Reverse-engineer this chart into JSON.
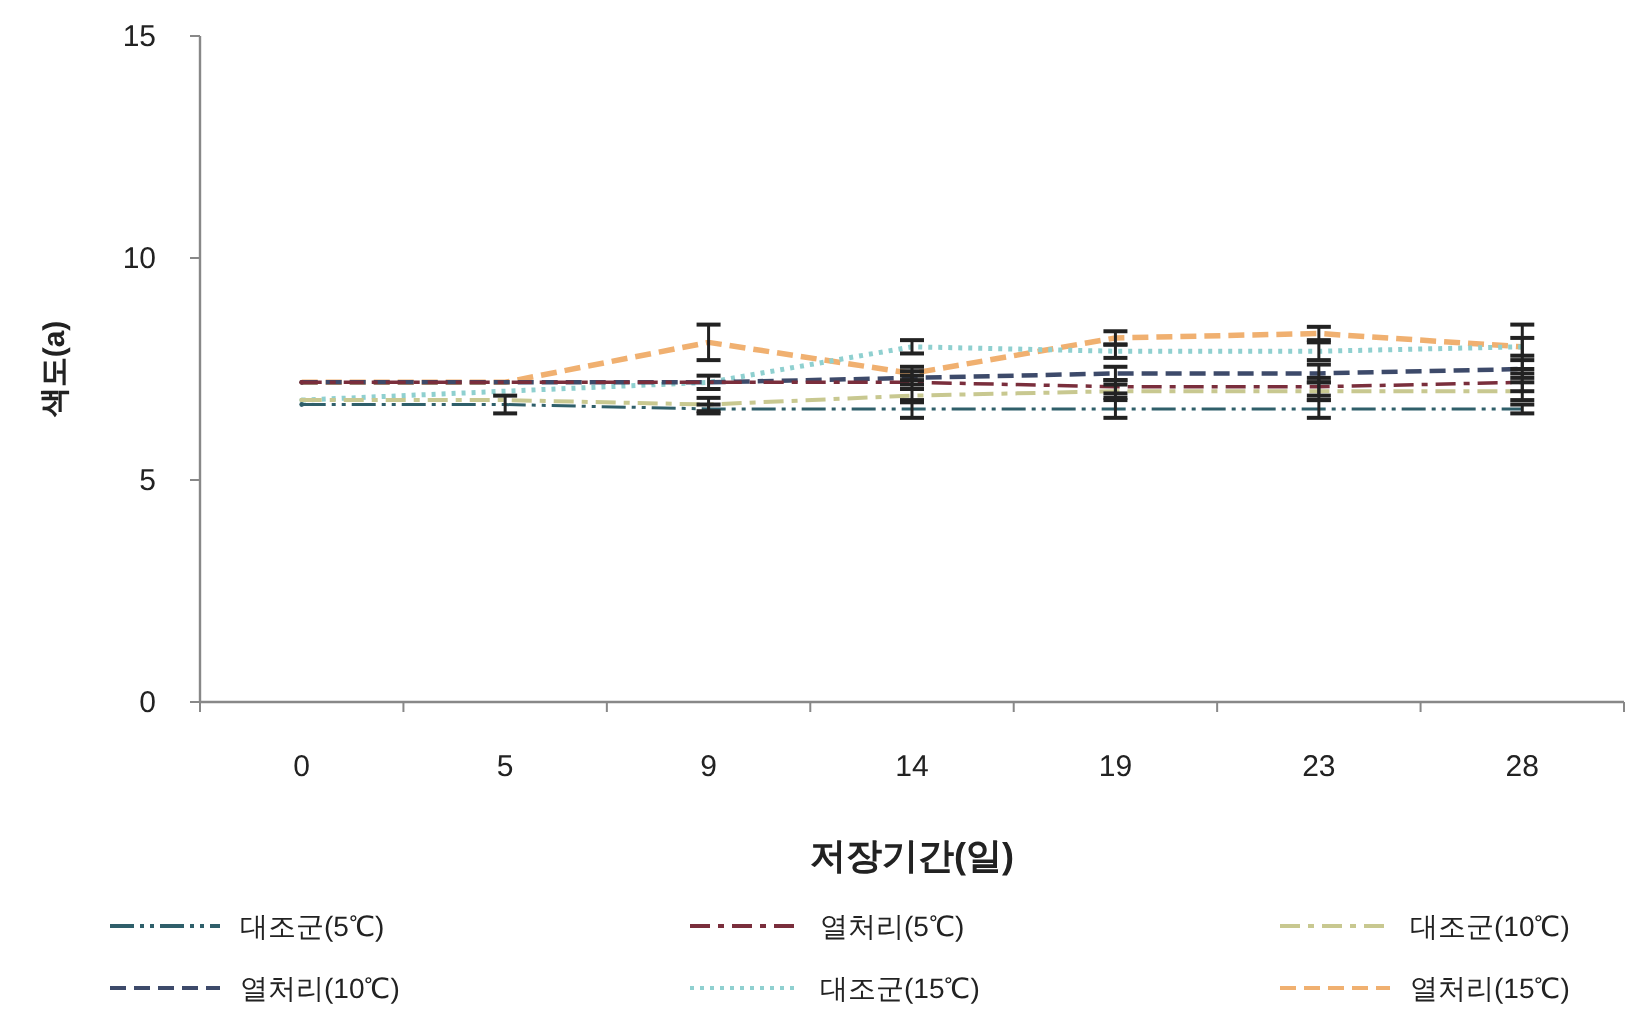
{
  "chart_data": {
    "type": "line",
    "xlabel": "저장기간(일)",
    "ylabel": "색도(a)",
    "categories": [
      "0",
      "5",
      "9",
      "14",
      "19",
      "23",
      "28"
    ],
    "ylim": [
      0,
      15
    ],
    "yticks": [
      0,
      5,
      10,
      15
    ],
    "grid": false,
    "legend": "bottom",
    "marker": "none",
    "series": [
      {
        "name": "대조군(5℃)",
        "color": "#2f5f6a",
        "line_style": "dashdotdot",
        "values": [
          6.7,
          6.7,
          6.6,
          6.6,
          6.6,
          6.6,
          6.6
        ],
        "errors": [
          null,
          0.2,
          0.1,
          0.2,
          0.2,
          0.2,
          0.1
        ]
      },
      {
        "name": "열처리(5℃)",
        "color": "#7a2e3c",
        "line_style": "dashdot",
        "values": [
          7.2,
          7.2,
          7.2,
          7.2,
          7.1,
          7.1,
          7.2
        ],
        "errors": [
          null,
          null,
          0.15,
          0.15,
          0.15,
          0.2,
          0.2
        ]
      },
      {
        "name": "대조군(10℃)",
        "color": "#c8c890",
        "line_style": "dashdot",
        "values": [
          6.8,
          6.8,
          6.7,
          6.9,
          7.0,
          7.0,
          7.0
        ],
        "errors": [
          null,
          null,
          0.15,
          0.15,
          0.15,
          0.2,
          0.2
        ]
      },
      {
        "name": "열처리(10℃)",
        "color": "#3d4a6a",
        "line_style": "dashed",
        "values": [
          7.2,
          7.2,
          7.2,
          7.3,
          7.4,
          7.4,
          7.5
        ],
        "errors": [
          null,
          null,
          null,
          0.15,
          0.15,
          0.2,
          0.2
        ]
      },
      {
        "name": "대조군(15℃)",
        "color": "#8fd0d0",
        "line_style": "dotted",
        "values": [
          6.8,
          7.0,
          7.2,
          8.0,
          7.9,
          7.9,
          8.0
        ],
        "errors": [
          null,
          null,
          null,
          0.15,
          0.15,
          0.2,
          0.2
        ]
      },
      {
        "name": "열처리(15℃)",
        "color": "#f0b070",
        "line_style": "dashed",
        "values": [
          7.2,
          7.2,
          8.1,
          7.4,
          8.2,
          8.3,
          8.0
        ],
        "errors": [
          null,
          null,
          0.4,
          0.15,
          0.15,
          0.15,
          0.5
        ]
      }
    ]
  }
}
